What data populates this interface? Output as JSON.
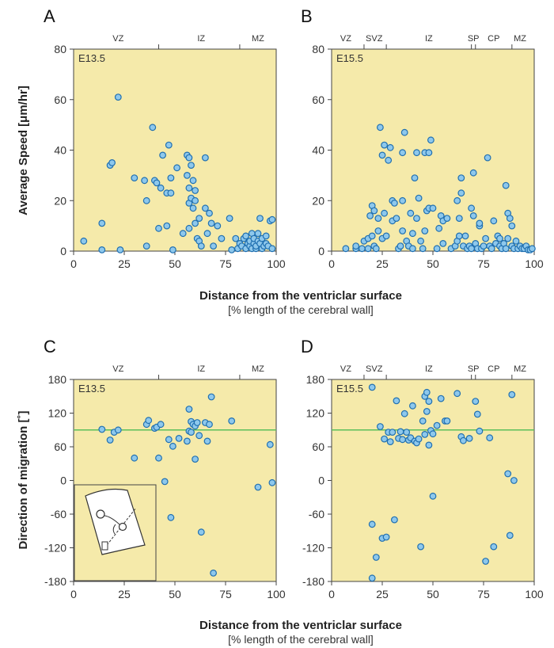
{
  "xlabel": "Distance from the ventriclar surface",
  "xlabel_sub": "[% length of the cerebral wall]",
  "panels": {
    "A": {
      "letter": "A",
      "stage": "E13.5",
      "ylabel": "Average Speed [μm/hr]"
    },
    "B": {
      "letter": "B",
      "stage": "E15.5"
    },
    "C": {
      "letter": "C",
      "stage": "E13.5",
      "ylabel": "Direction of migration [˚]"
    },
    "D": {
      "letter": "D",
      "stage": "E15.5"
    }
  },
  "x_ticks": [
    "0",
    "25",
    "50",
    "75",
    "100"
  ],
  "speed_y_ticks": [
    "0",
    "20",
    "40",
    "60",
    "80"
  ],
  "direction_y_ticks": [
    "-180",
    "-120",
    "-60",
    "0",
    "60",
    "120",
    "180"
  ],
  "zones_e13": [
    {
      "label": "VZ",
      "x": 22
    },
    {
      "label": "IZ",
      "x": 63
    },
    {
      "label": "MZ",
      "x": 91
    }
  ],
  "zones_e15": [
    {
      "label": "VZ",
      "x": 7
    },
    {
      "label": "SVZ",
      "x": 21
    },
    {
      "label": "IZ",
      "x": 48
    },
    {
      "label": "SP",
      "x": 70
    },
    {
      "label": "CP",
      "x": 80
    },
    {
      "label": "MZ",
      "x": 93
    }
  ],
  "boundaries_e13": [
    42,
    82
  ],
  "boundaries_e15": [
    16,
    27,
    69,
    71,
    89
  ],
  "colors": {
    "plot_bg": "#f5eaaa",
    "dot_fill": "#8ec8ec",
    "dot_stroke": "#1f6fb0",
    "reference_line": "#5bbf5b"
  },
  "chart_data": [
    {
      "panel": "A",
      "type": "scatter",
      "xlim": [
        0,
        100
      ],
      "ylim": [
        0,
        80
      ],
      "points": [
        [
          5,
          4
        ],
        [
          14,
          11
        ],
        [
          14,
          0.5
        ],
        [
          18,
          34
        ],
        [
          19,
          35
        ],
        [
          22,
          61
        ],
        [
          23,
          0.5
        ],
        [
          30,
          29
        ],
        [
          35,
          28
        ],
        [
          36,
          20
        ],
        [
          36,
          2
        ],
        [
          39,
          49
        ],
        [
          40,
          28
        ],
        [
          41,
          27
        ],
        [
          42,
          9
        ],
        [
          43,
          25
        ],
        [
          44,
          38
        ],
        [
          46,
          23
        ],
        [
          46,
          10
        ],
        [
          47,
          42
        ],
        [
          48,
          29
        ],
        [
          48,
          23
        ],
        [
          49,
          0.5
        ],
        [
          51,
          33
        ],
        [
          54,
          7
        ],
        [
          56,
          30
        ],
        [
          56,
          38
        ],
        [
          57,
          37
        ],
        [
          57,
          25
        ],
        [
          57,
          19
        ],
        [
          57,
          9
        ],
        [
          58,
          34
        ],
        [
          58,
          21
        ],
        [
          59,
          28
        ],
        [
          59,
          17
        ],
        [
          60,
          24
        ],
        [
          60,
          20
        ],
        [
          60,
          11
        ],
        [
          61,
          5
        ],
        [
          62,
          13
        ],
        [
          62,
          4
        ],
        [
          63,
          2
        ],
        [
          65,
          17
        ],
        [
          65,
          37
        ],
        [
          66,
          7
        ],
        [
          67,
          15
        ],
        [
          68,
          11
        ],
        [
          69,
          2
        ],
        [
          71,
          10
        ],
        [
          73,
          5
        ],
        [
          77,
          13
        ],
        [
          78,
          0.5
        ],
        [
          80,
          5
        ],
        [
          81,
          1
        ],
        [
          82,
          3
        ],
        [
          83,
          2
        ],
        [
          84,
          5
        ],
        [
          85,
          1
        ],
        [
          85,
          6
        ],
        [
          86,
          3
        ],
        [
          87,
          2
        ],
        [
          87,
          4
        ],
        [
          88,
          1
        ],
        [
          88,
          7
        ],
        [
          89,
          3
        ],
        [
          89,
          5
        ],
        [
          90,
          1
        ],
        [
          90,
          2
        ],
        [
          91,
          4
        ],
        [
          91,
          7
        ],
        [
          92,
          13
        ],
        [
          92,
          3
        ],
        [
          93,
          1
        ],
        [
          93,
          5
        ],
        [
          94,
          2
        ],
        [
          95,
          3
        ],
        [
          95,
          6
        ],
        [
          96,
          2
        ],
        [
          97,
          12
        ],
        [
          98,
          1
        ],
        [
          98,
          12.5
        ]
      ]
    },
    {
      "panel": "B",
      "type": "scatter",
      "xlim": [
        0,
        100
      ],
      "ylim": [
        0,
        80
      ],
      "points": [
        [
          7,
          1
        ],
        [
          12,
          1
        ],
        [
          12,
          2
        ],
        [
          15,
          1
        ],
        [
          16,
          4
        ],
        [
          18,
          5
        ],
        [
          18,
          1
        ],
        [
          19,
          14
        ],
        [
          20,
          18
        ],
        [
          20,
          6
        ],
        [
          21,
          16
        ],
        [
          21,
          2
        ],
        [
          22,
          1
        ],
        [
          23,
          13
        ],
        [
          23,
          8
        ],
        [
          24,
          49
        ],
        [
          25,
          38
        ],
        [
          25,
          5
        ],
        [
          26,
          42
        ],
        [
          26,
          15
        ],
        [
          27,
          6
        ],
        [
          28,
          36
        ],
        [
          29,
          41
        ],
        [
          30,
          20
        ],
        [
          30,
          12
        ],
        [
          31,
          19
        ],
        [
          32,
          13
        ],
        [
          33,
          1
        ],
        [
          34,
          2
        ],
        [
          35,
          39
        ],
        [
          35,
          20
        ],
        [
          35,
          8
        ],
        [
          36,
          47
        ],
        [
          37,
          4
        ],
        [
          38,
          2
        ],
        [
          39,
          15
        ],
        [
          40,
          7
        ],
        [
          40,
          1
        ],
        [
          41,
          29
        ],
        [
          42,
          13
        ],
        [
          42,
          39
        ],
        [
          43,
          21
        ],
        [
          44,
          4
        ],
        [
          45,
          1
        ],
        [
          46,
          8
        ],
        [
          46,
          39
        ],
        [
          47,
          16
        ],
        [
          48,
          17
        ],
        [
          48,
          39
        ],
        [
          49,
          44
        ],
        [
          50,
          17
        ],
        [
          52,
          1
        ],
        [
          53,
          9
        ],
        [
          54,
          14
        ],
        [
          55,
          12
        ],
        [
          55,
          3
        ],
        [
          57,
          13
        ],
        [
          59,
          1
        ],
        [
          61,
          2
        ],
        [
          62,
          4
        ],
        [
          62,
          20
        ],
        [
          63,
          6
        ],
        [
          63,
          13
        ],
        [
          64,
          23
        ],
        [
          64,
          29
        ],
        [
          65,
          2
        ],
        [
          66,
          6
        ],
        [
          67,
          1
        ],
        [
          68,
          2
        ],
        [
          69,
          17
        ],
        [
          69,
          1
        ],
        [
          70,
          14
        ],
        [
          70,
          31
        ],
        [
          71,
          3
        ],
        [
          72,
          1
        ],
        [
          73,
          10
        ],
        [
          73,
          11
        ],
        [
          74,
          1
        ],
        [
          75,
          2
        ],
        [
          76,
          5
        ],
        [
          77,
          37
        ],
        [
          78,
          2
        ],
        [
          79,
          1
        ],
        [
          80,
          12
        ],
        [
          81,
          3
        ],
        [
          82,
          6
        ],
        [
          83,
          2
        ],
        [
          83,
          5
        ],
        [
          84,
          1
        ],
        [
          85,
          3
        ],
        [
          86,
          1
        ],
        [
          86,
          26
        ],
        [
          87,
          5
        ],
        [
          87,
          15
        ],
        [
          88,
          13
        ],
        [
          89,
          10
        ],
        [
          89,
          2
        ],
        [
          90,
          1
        ],
        [
          91,
          4
        ],
        [
          92,
          1
        ],
        [
          93,
          2
        ],
        [
          94,
          1
        ],
        [
          95,
          1
        ],
        [
          96,
          2
        ],
        [
          97,
          0.5
        ],
        [
          98,
          0.5
        ],
        [
          99,
          1
        ]
      ]
    },
    {
      "panel": "C",
      "type": "scatter",
      "xlim": [
        0,
        100
      ],
      "ylim": [
        -180,
        180
      ],
      "reference_line": 90,
      "points": [
        [
          14,
          91
        ],
        [
          18,
          72
        ],
        [
          20,
          86
        ],
        [
          22,
          90
        ],
        [
          30,
          40
        ],
        [
          36,
          100
        ],
        [
          37,
          107
        ],
        [
          40,
          93
        ],
        [
          41,
          95
        ],
        [
          42,
          40
        ],
        [
          43,
          100
        ],
        [
          45,
          -2
        ],
        [
          47,
          73
        ],
        [
          48,
          -66
        ],
        [
          49,
          61
        ],
        [
          52,
          75
        ],
        [
          56,
          70
        ],
        [
          57,
          88
        ],
        [
          57,
          127
        ],
        [
          58,
          105
        ],
        [
          58,
          86
        ],
        [
          59,
          100
        ],
        [
          60,
          38
        ],
        [
          60,
          97
        ],
        [
          61,
          103
        ],
        [
          62,
          80
        ],
        [
          63,
          -92
        ],
        [
          65,
          103
        ],
        [
          66,
          70
        ],
        [
          67,
          100
        ],
        [
          68,
          149
        ],
        [
          69,
          -165
        ],
        [
          78,
          106
        ],
        [
          91,
          -12
        ],
        [
          97,
          64
        ],
        [
          98,
          -4
        ]
      ]
    },
    {
      "panel": "D",
      "type": "scatter",
      "xlim": [
        0,
        100
      ],
      "ylim": [
        -180,
        180
      ],
      "reference_line": 90,
      "points": [
        [
          20,
          -78
        ],
        [
          20,
          166
        ],
        [
          20,
          -174
        ],
        [
          22,
          -137
        ],
        [
          24,
          96
        ],
        [
          25,
          -103
        ],
        [
          26,
          74
        ],
        [
          27,
          -101
        ],
        [
          28,
          86
        ],
        [
          29,
          69
        ],
        [
          30,
          86
        ],
        [
          31,
          -70
        ],
        [
          32,
          142
        ],
        [
          33,
          75
        ],
        [
          34,
          87
        ],
        [
          35,
          73
        ],
        [
          36,
          119
        ],
        [
          37,
          86
        ],
        [
          38,
          72
        ],
        [
          39,
          76
        ],
        [
          40,
          133
        ],
        [
          41,
          70
        ],
        [
          42,
          67
        ],
        [
          43,
          74
        ],
        [
          44,
          -118
        ],
        [
          45,
          106
        ],
        [
          46,
          82
        ],
        [
          46,
          150
        ],
        [
          47,
          123
        ],
        [
          47,
          157
        ],
        [
          48,
          141
        ],
        [
          48,
          63
        ],
        [
          49,
          89
        ],
        [
          50,
          83
        ],
        [
          50,
          -28
        ],
        [
          52,
          98
        ],
        [
          54,
          146
        ],
        [
          56,
          106
        ],
        [
          57,
          106
        ],
        [
          62,
          155
        ],
        [
          64,
          78
        ],
        [
          65,
          71
        ],
        [
          68,
          75
        ],
        [
          71,
          141
        ],
        [
          72,
          118
        ],
        [
          73,
          88
        ],
        [
          76,
          -144
        ],
        [
          78,
          76
        ],
        [
          80,
          -118
        ],
        [
          87,
          12
        ],
        [
          88,
          -98
        ],
        [
          89,
          153
        ],
        [
          90,
          0
        ]
      ]
    }
  ]
}
